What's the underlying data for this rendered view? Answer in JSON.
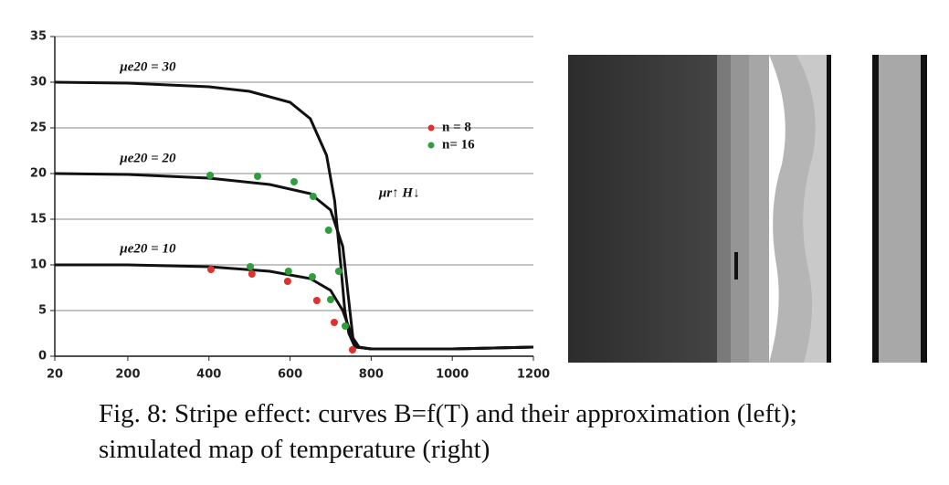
{
  "chart_data": {
    "type": "line",
    "xlim": [
      20,
      1200
    ],
    "xticks": [
      20,
      200,
      400,
      600,
      800,
      1000,
      1200
    ],
    "ylim": [
      0,
      35
    ],
    "yticks": [
      0,
      5,
      10,
      15,
      20,
      25,
      30,
      35
    ],
    "grid": true,
    "annotation": "μr↑ H↓",
    "series": [
      {
        "type": "line",
        "name": "μe20 = 30",
        "color": "#111111",
        "x": [
          20,
          200,
          400,
          500,
          600,
          650,
          690,
          710,
          725,
          735,
          745,
          760,
          800,
          1000,
          1200
        ],
        "values": [
          30,
          29.9,
          29.5,
          29,
          27.8,
          26,
          22,
          17,
          10,
          5,
          2.5,
          1,
          0.8,
          0.8,
          1
        ]
      },
      {
        "type": "line",
        "name": "μe20 = 20",
        "color": "#111111",
        "x": [
          20,
          200,
          400,
          550,
          650,
          700,
          730,
          745,
          755,
          770,
          800,
          1000,
          1200
        ],
        "values": [
          20,
          19.9,
          19.5,
          18.8,
          17.8,
          16,
          12,
          6,
          2,
          1,
          0.8,
          0.8,
          1
        ]
      },
      {
        "type": "line",
        "name": "μe20 = 10",
        "color": "#111111",
        "x": [
          20,
          200,
          400,
          550,
          650,
          700,
          730,
          750,
          765,
          800,
          1000,
          1200
        ],
        "values": [
          10,
          10,
          9.8,
          9.3,
          8.5,
          7.2,
          5,
          2.5,
          1,
          0.8,
          0.8,
          1
        ]
      },
      {
        "type": "scatter",
        "name": "n = 8",
        "color": "#e03030",
        "x": [
          405,
          506,
          594,
          666,
          709,
          754
        ],
        "values": [
          9.5,
          9.0,
          8.2,
          6.1,
          3.7,
          0.7
        ]
      },
      {
        "type": "scatter",
        "name": "n= 16",
        "color": "#2e9e3e",
        "x": [
          403,
          520,
          610,
          657,
          695,
          720,
          502,
          596,
          655,
          700,
          736
        ],
        "values": [
          19.8,
          19.7,
          19.1,
          17.5,
          13.8,
          9.3,
          9.8,
          9.3,
          8.7,
          6.2,
          3.3
        ]
      }
    ]
  },
  "caption": {
    "lines": [
      "Fig. 8: Stripe effect: curves B=f(T) and their approximation (left);",
      "simulated map of temperature (right)"
    ]
  }
}
